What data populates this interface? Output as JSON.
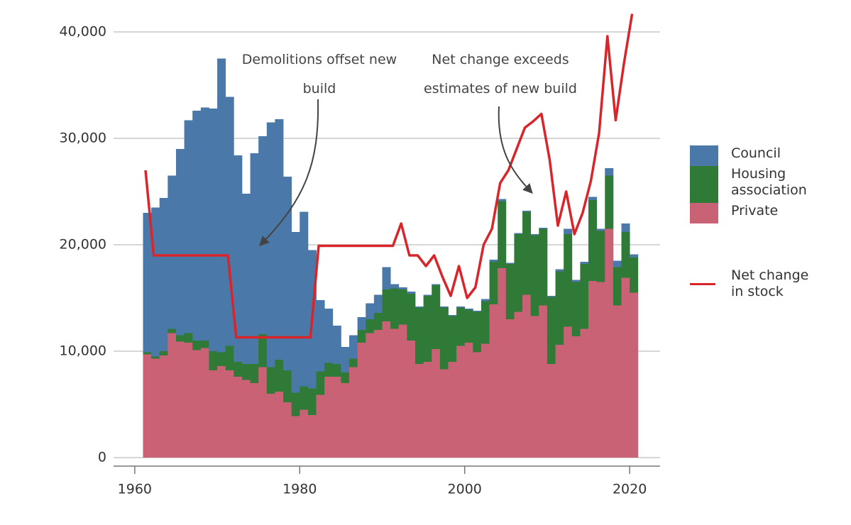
{
  "chart_data": {
    "type": "stacked-bar-line",
    "x": [
      1961,
      1962,
      1963,
      1964,
      1965,
      1966,
      1967,
      1968,
      1969,
      1970,
      1971,
      1972,
      1973,
      1974,
      1975,
      1976,
      1977,
      1978,
      1979,
      1980,
      1981,
      1982,
      1983,
      1984,
      1985,
      1986,
      1987,
      1988,
      1989,
      1990,
      1991,
      1992,
      1993,
      1994,
      1995,
      1996,
      1997,
      1998,
      1999,
      2000,
      2001,
      2002,
      2003,
      2004,
      2005,
      2006,
      2007,
      2008,
      2009,
      2010,
      2011,
      2012,
      2013,
      2014,
      2015,
      2016,
      2017,
      2018,
      2019,
      2020
    ],
    "series": [
      {
        "name": "Private",
        "color": "#c96275",
        "values": [
          9700,
          9300,
          9600,
          11700,
          10900,
          10800,
          10100,
          10300,
          8200,
          8600,
          8200,
          7600,
          7300,
          7000,
          8500,
          6000,
          6200,
          5200,
          3900,
          4500,
          4000,
          5900,
          7600,
          7600,
          7000,
          8500,
          10800,
          11700,
          12000,
          12800,
          12100,
          12500,
          11000,
          8800,
          9000,
          10200,
          8300,
          9000,
          10500,
          10800,
          9900,
          10700,
          14400,
          17800,
          13000,
          13700,
          15300,
          13300,
          14300,
          8800,
          10600,
          12300,
          11400,
          12100,
          16600,
          16500,
          21500,
          14300,
          16900,
          15500
        ]
      },
      {
        "name": "Housing association",
        "color": "#2f7a36",
        "values": [
          200,
          200,
          400,
          400,
          600,
          900,
          900,
          700,
          1800,
          1300,
          2300,
          1400,
          1500,
          1800,
          3100,
          2500,
          3000,
          3000,
          2200,
          2200,
          2500,
          2200,
          1300,
          1200,
          1000,
          800,
          1200,
          1300,
          1600,
          3000,
          3800,
          3300,
          4400,
          5300,
          6200,
          6000,
          5800,
          4300,
          3600,
          3100,
          3800,
          4000,
          4000,
          6300,
          5200,
          7300,
          7800,
          7600,
          7200,
          6300,
          6900,
          8700,
          5100,
          6100,
          7600,
          4800,
          5000,
          3600,
          4300,
          3300
        ]
      },
      {
        "name": "Council",
        "color": "#4a78a8",
        "values": [
          13100,
          14000,
          14400,
          14400,
          17500,
          20000,
          21600,
          21900,
          22800,
          27600,
          23400,
          19400,
          16000,
          19800,
          18600,
          23000,
          22600,
          18200,
          15100,
          16400,
          13000,
          6700,
          5100,
          3600,
          2400,
          2200,
          1200,
          1500,
          1700,
          2100,
          400,
          200,
          200,
          100,
          100,
          100,
          100,
          100,
          100,
          100,
          100,
          200,
          200,
          200,
          100,
          100,
          100,
          100,
          100,
          100,
          200,
          500,
          200,
          200,
          300,
          200,
          700,
          600,
          800,
          300
        ]
      },
      {
        "name": "Net change in stock",
        "color": "#d9252a",
        "kind": "line",
        "values": [
          27000,
          19000,
          19000,
          19000,
          19000,
          19000,
          19000,
          19000,
          19000,
          19000,
          19000,
          11300,
          11300,
          11300,
          11300,
          11300,
          11300,
          11300,
          11300,
          11300,
          11300,
          19900,
          19900,
          19900,
          19900,
          19900,
          19900,
          19900,
          19900,
          19900,
          19900,
          22000,
          19000,
          19000,
          18000,
          19000,
          17000,
          15200,
          18000,
          15000,
          16000,
          20000,
          21500,
          25800,
          27000,
          29000,
          31000,
          31600,
          32300,
          28000,
          21800,
          25000,
          21000,
          23000,
          26000,
          30500,
          39600,
          31700,
          37000,
          41700
        ]
      }
    ],
    "annotations": [
      "Demolitions offset new build",
      "Net change exceeds estimates of new build"
    ],
    "xlim": [
      1957,
      2023
    ],
    "xticks": [
      1960,
      1980,
      2000,
      2020
    ],
    "ylim": [
      0,
      42000
    ],
    "yticks": [
      0,
      {
        "value": 10000,
        "label": "10,000"
      },
      {
        "value": 20000,
        "label": "20,000"
      },
      {
        "value": 30000,
        "label": "30,000"
      },
      {
        "value": 40000,
        "label": "40,000"
      }
    ],
    "grid": true
  }
}
